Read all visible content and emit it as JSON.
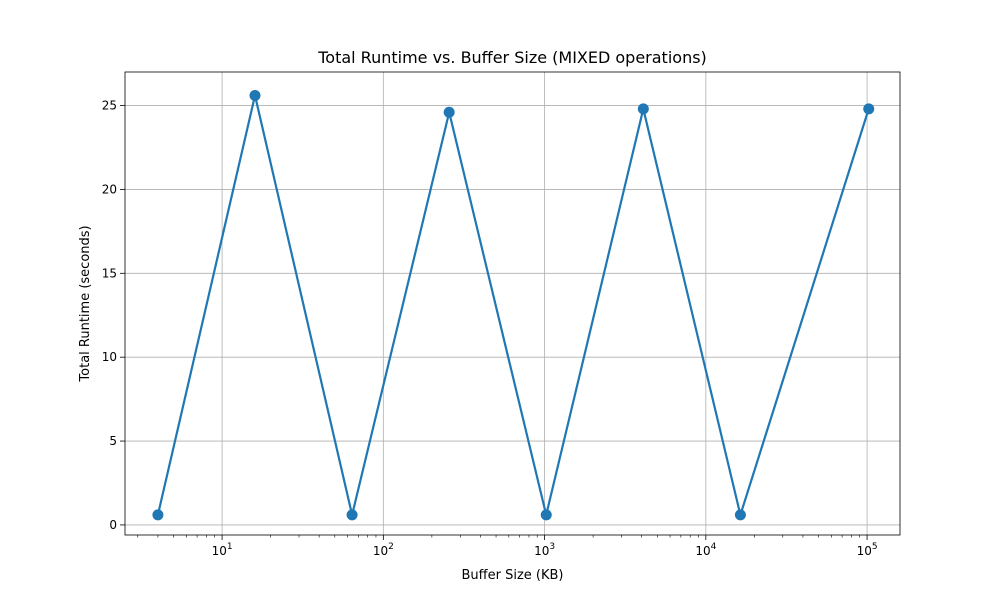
{
  "chart_data": {
    "type": "line",
    "title": "Total Runtime vs. Buffer Size (MIXED operations)",
    "xlabel": "Buffer Size (KB)",
    "ylabel": "Total Runtime (seconds)",
    "x_scale": "log",
    "xlim": [
      2.5,
      160000
    ],
    "ylim": [
      -0.6,
      27
    ],
    "x_ticks": [
      {
        "base": "10",
        "exp": "1",
        "value": 10
      },
      {
        "base": "10",
        "exp": "2",
        "value": 100
      },
      {
        "base": "10",
        "exp": "3",
        "value": 1000
      },
      {
        "base": "10",
        "exp": "4",
        "value": 10000
      },
      {
        "base": "10",
        "exp": "5",
        "value": 100000
      }
    ],
    "y_ticks": [
      {
        "label": "0",
        "value": 0
      },
      {
        "label": "5",
        "value": 5
      },
      {
        "label": "10",
        "value": 10
      },
      {
        "label": "15",
        "value": 15
      },
      {
        "label": "20",
        "value": 20
      },
      {
        "label": "25",
        "value": 25
      }
    ],
    "grid": true,
    "series": [
      {
        "color": "#1f77b4",
        "x": [
          4,
          16,
          64,
          256,
          1024,
          4096,
          16384,
          102400
        ],
        "y": [
          0.6,
          25.6,
          0.6,
          24.6,
          0.6,
          24.8,
          0.6,
          24.8
        ]
      }
    ]
  }
}
